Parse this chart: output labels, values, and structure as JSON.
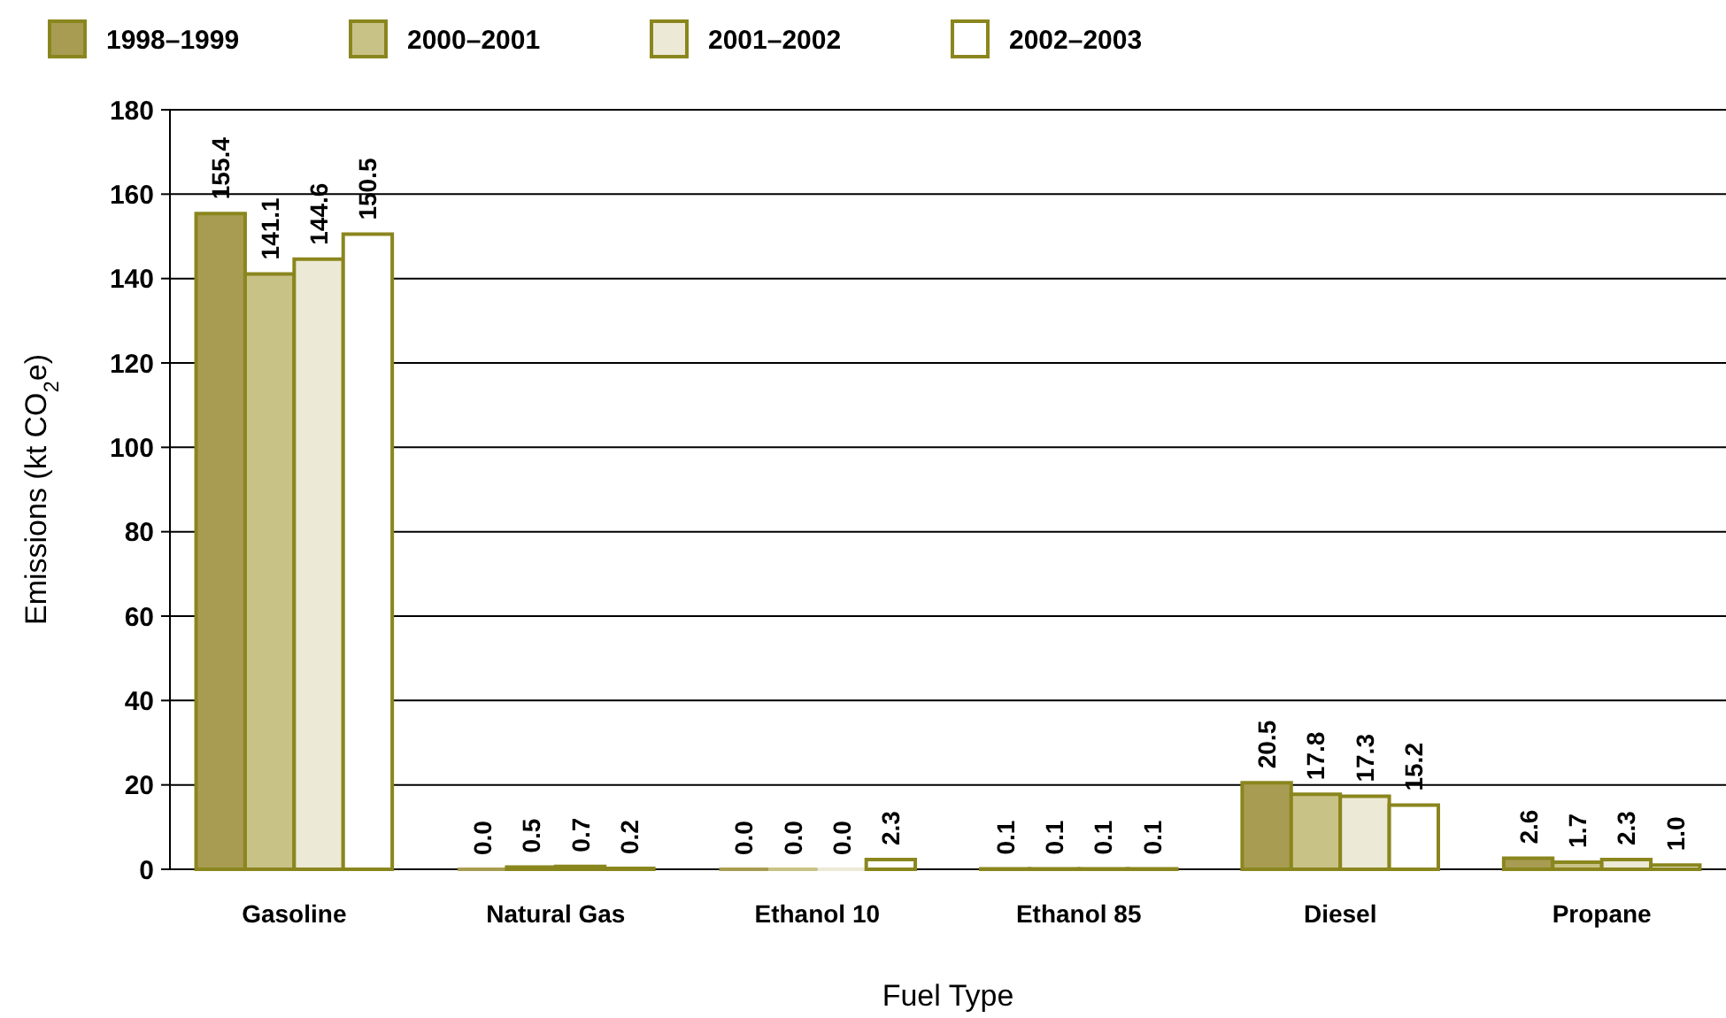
{
  "chart_data": {
    "type": "bar",
    "xlabel": "Fuel Type",
    "ylabel": "Emissions (kt CO$_{2}$e)",
    "categories": [
      "Gasoline",
      "Natural Gas",
      "Ethanol 10",
      "Ethanol 85",
      "Diesel",
      "Propane"
    ],
    "series": [
      {
        "name": "1998–1999",
        "color": "#a89c52",
        "values": [
          155.4,
          0.0,
          0.0,
          0.1,
          20.5,
          2.6
        ],
        "value_labels": [
          "155.4",
          "0.0",
          "0.0",
          "0.1",
          "20.5",
          "2.6"
        ]
      },
      {
        "name": "2000–2001",
        "color": "#c9c287",
        "values": [
          141.1,
          0.5,
          0.0,
          0.1,
          17.8,
          1.7
        ],
        "value_labels": [
          "141.1",
          "0.5",
          "0.0",
          "0.1",
          "17.8",
          "1.7"
        ]
      },
      {
        "name": "2001–2002",
        "color": "#ece9d6",
        "values": [
          144.6,
          0.7,
          0.0,
          0.1,
          17.3,
          2.3
        ],
        "value_labels": [
          "144.6",
          "0.7",
          "0.0",
          "0.1",
          "17.3",
          "2.3"
        ]
      },
      {
        "name": "2002–2003",
        "color": "#ffffff",
        "values": [
          150.5,
          0.2,
          2.3,
          0.1,
          15.2,
          1.0
        ],
        "value_labels": [
          "150.5",
          "0.2",
          "2.3",
          "0.1",
          "15.2",
          "1.0"
        ]
      }
    ],
    "ylim": [
      0,
      180
    ],
    "yticks": [
      0,
      20,
      40,
      60,
      80,
      100,
      120,
      140,
      160,
      180
    ],
    "grid": "y",
    "legend": "top"
  }
}
